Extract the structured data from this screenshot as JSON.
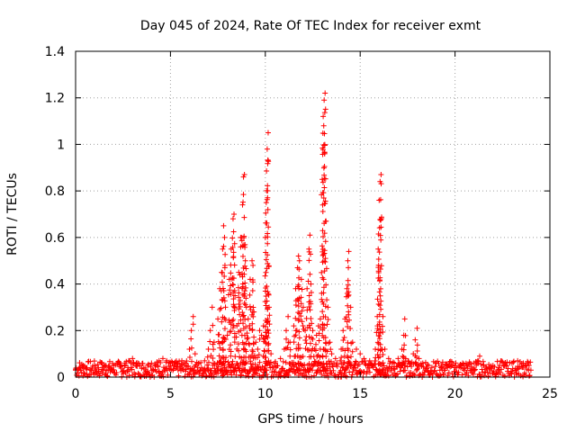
{
  "chart_data": {
    "type": "scatter",
    "title": "Day 045 of 2024, Rate Of TEC Index for receiver exmt",
    "xlabel": "GPS time / hours",
    "ylabel": "ROTI / TECUs",
    "xlim": [
      0,
      25
    ],
    "ylim": [
      0,
      1.4
    ],
    "x_ticks": [
      0,
      5,
      10,
      15,
      20,
      25
    ],
    "y_ticks": [
      0,
      0.2,
      0.4,
      0.6,
      0.8,
      1,
      1.2,
      1.4
    ],
    "x_tick_labels": [
      "0",
      "5",
      "10",
      "15",
      "20",
      "25"
    ],
    "y_tick_labels": [
      "0",
      "0.2",
      "0.4",
      "0.6",
      "0.8",
      "1",
      "1.2",
      "1.4"
    ],
    "grid": true,
    "marker": "+",
    "color": "#ff0000",
    "series": [
      {
        "name": "ROTI",
        "points": [
          [
            0.0,
            0.03
          ],
          [
            0.2,
            0.04
          ],
          [
            0.4,
            0.05
          ],
          [
            0.6,
            0.04
          ],
          [
            0.8,
            0.03
          ],
          [
            1.0,
            0.05
          ],
          [
            1.2,
            0.04
          ],
          [
            1.4,
            0.06
          ],
          [
            1.6,
            0.05
          ],
          [
            1.8,
            0.04
          ],
          [
            2.0,
            0.05
          ],
          [
            2.2,
            0.06
          ],
          [
            2.4,
            0.05
          ],
          [
            2.6,
            0.06
          ],
          [
            2.8,
            0.07
          ],
          [
            3.0,
            0.08
          ],
          [
            3.2,
            0.06
          ],
          [
            3.4,
            0.05
          ],
          [
            3.6,
            0.04
          ],
          [
            3.8,
            0.05
          ],
          [
            4.0,
            0.06
          ],
          [
            4.2,
            0.05
          ],
          [
            4.4,
            0.07
          ],
          [
            4.6,
            0.08
          ],
          [
            4.8,
            0.07
          ],
          [
            5.0,
            0.06
          ],
          [
            5.2,
            0.05
          ],
          [
            5.4,
            0.06
          ],
          [
            5.6,
            0.07
          ],
          [
            5.8,
            0.06
          ],
          [
            6.0,
            0.12
          ],
          [
            6.1,
            0.2
          ],
          [
            6.2,
            0.26
          ],
          [
            6.3,
            0.1
          ],
          [
            6.5,
            0.06
          ],
          [
            6.8,
            0.07
          ],
          [
            7.0,
            0.12
          ],
          [
            7.1,
            0.2
          ],
          [
            7.2,
            0.3
          ],
          [
            7.3,
            0.15
          ],
          [
            7.5,
            0.25
          ],
          [
            7.6,
            0.38
          ],
          [
            7.7,
            0.45
          ],
          [
            7.75,
            0.55
          ],
          [
            7.8,
            0.65
          ],
          [
            7.85,
            0.6
          ],
          [
            7.9,
            0.3
          ],
          [
            8.0,
            0.18
          ],
          [
            8.1,
            0.42
          ],
          [
            8.2,
            0.55
          ],
          [
            8.3,
            0.68
          ],
          [
            8.35,
            0.7
          ],
          [
            8.4,
            0.35
          ],
          [
            8.5,
            0.22
          ],
          [
            8.6,
            0.45
          ],
          [
            8.7,
            0.6
          ],
          [
            8.8,
            0.74
          ],
          [
            8.85,
            0.86
          ],
          [
            8.9,
            0.87
          ],
          [
            8.95,
            0.5
          ],
          [
            9.0,
            0.3
          ],
          [
            9.1,
            0.25
          ],
          [
            9.2,
            0.42
          ],
          [
            9.3,
            0.5
          ],
          [
            9.35,
            0.48
          ],
          [
            9.4,
            0.28
          ],
          [
            9.5,
            0.15
          ],
          [
            9.6,
            0.12
          ],
          [
            9.7,
            0.2
          ],
          [
            9.8,
            0.18
          ],
          [
            9.9,
            0.22
          ],
          [
            10.0,
            0.6
          ],
          [
            10.05,
            0.75
          ],
          [
            10.1,
            0.98
          ],
          [
            10.15,
            1.05
          ],
          [
            10.2,
            0.3
          ],
          [
            10.3,
            0.1
          ],
          [
            10.5,
            0.06
          ],
          [
            10.8,
            0.08
          ],
          [
            11.0,
            0.12
          ],
          [
            11.1,
            0.2
          ],
          [
            11.2,
            0.26
          ],
          [
            11.3,
            0.15
          ],
          [
            11.5,
            0.22
          ],
          [
            11.6,
            0.38
          ],
          [
            11.7,
            0.47
          ],
          [
            11.75,
            0.52
          ],
          [
            11.8,
            0.5
          ],
          [
            11.9,
            0.42
          ],
          [
            12.0,
            0.3
          ],
          [
            12.1,
            0.2
          ],
          [
            12.2,
            0.38
          ],
          [
            12.3,
            0.55
          ],
          [
            12.35,
            0.61
          ],
          [
            12.4,
            0.4
          ],
          [
            12.5,
            0.2
          ],
          [
            12.6,
            0.12
          ],
          [
            12.7,
            0.18
          ],
          [
            12.8,
            0.22
          ],
          [
            12.9,
            0.25
          ],
          [
            13.0,
            0.85
          ],
          [
            13.05,
            1.12
          ],
          [
            13.1,
            1.19
          ],
          [
            13.15,
            1.22
          ],
          [
            13.2,
            0.67
          ],
          [
            13.3,
            0.3
          ],
          [
            13.4,
            0.15
          ],
          [
            13.5,
            0.1
          ],
          [
            13.7,
            0.08
          ],
          [
            14.0,
            0.12
          ],
          [
            14.1,
            0.2
          ],
          [
            14.2,
            0.25
          ],
          [
            14.3,
            0.38
          ],
          [
            14.35,
            0.5
          ],
          [
            14.4,
            0.54
          ],
          [
            14.5,
            0.3
          ],
          [
            14.6,
            0.15
          ],
          [
            14.8,
            0.12
          ],
          [
            15.0,
            0.1
          ],
          [
            15.2,
            0.08
          ],
          [
            15.5,
            0.07
          ],
          [
            15.8,
            0.12
          ],
          [
            15.9,
            0.26
          ],
          [
            15.95,
            0.55
          ],
          [
            16.0,
            0.76
          ],
          [
            16.05,
            0.84
          ],
          [
            16.1,
            0.87
          ],
          [
            16.2,
            0.26
          ],
          [
            16.3,
            0.12
          ],
          [
            16.5,
            0.08
          ],
          [
            16.8,
            0.06
          ],
          [
            17.0,
            0.08
          ],
          [
            17.2,
            0.12
          ],
          [
            17.3,
            0.18
          ],
          [
            17.35,
            0.25
          ],
          [
            17.4,
            0.08
          ],
          [
            17.6,
            0.06
          ],
          [
            17.8,
            0.1
          ],
          [
            17.9,
            0.16
          ],
          [
            18.0,
            0.21
          ],
          [
            18.1,
            0.08
          ],
          [
            18.3,
            0.06
          ],
          [
            18.6,
            0.05
          ],
          [
            19.0,
            0.06
          ],
          [
            19.3,
            0.05
          ],
          [
            19.6,
            0.04
          ],
          [
            20.0,
            0.05
          ],
          [
            20.3,
            0.04
          ],
          [
            20.6,
            0.05
          ],
          [
            21.0,
            0.06
          ],
          [
            21.2,
            0.07
          ],
          [
            21.3,
            0.09
          ],
          [
            21.5,
            0.05
          ],
          [
            21.8,
            0.04
          ],
          [
            22.0,
            0.05
          ],
          [
            22.3,
            0.04
          ],
          [
            22.6,
            0.05
          ],
          [
            23.0,
            0.06
          ],
          [
            23.3,
            0.07
          ],
          [
            23.6,
            0.06
          ],
          [
            23.9,
            0.05
          ],
          [
            24.0,
            0.03
          ]
        ]
      }
    ],
    "baseline_noise": {
      "x_range": [
        0,
        24
      ],
      "typical_max": 0.07
    }
  }
}
